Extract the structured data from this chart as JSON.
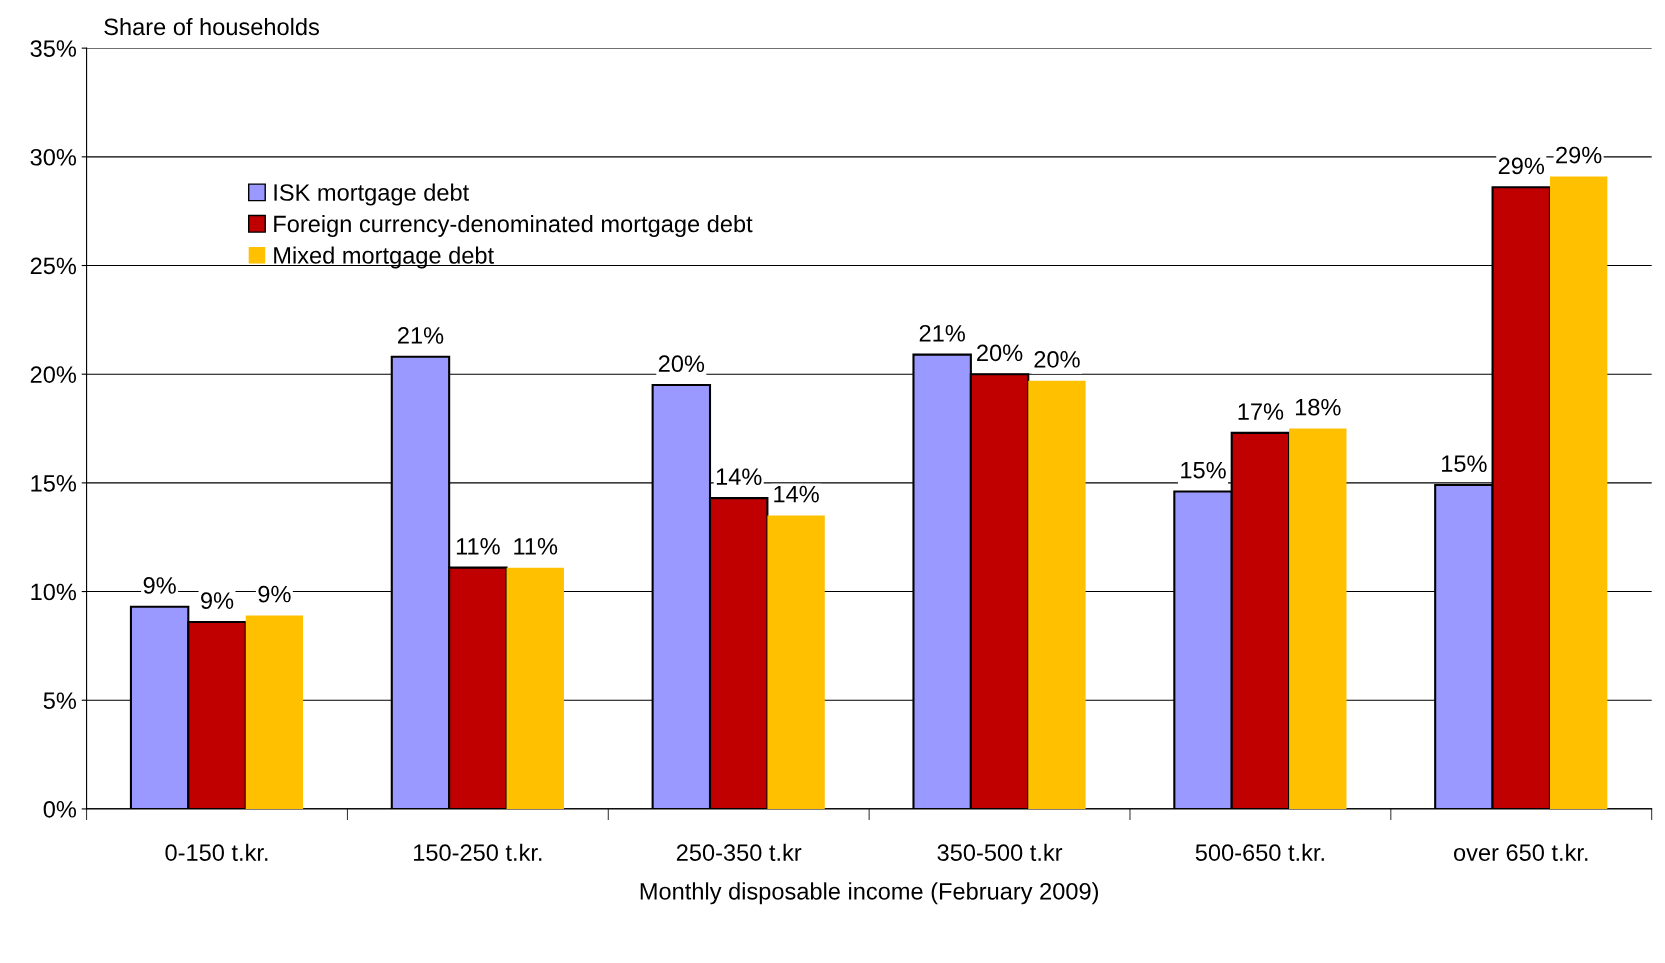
{
  "chart_data": {
    "type": "bar",
    "ylabel": "Share of households",
    "xlabel": "Monthly disposable income (February 2009)",
    "categories": [
      "0-150 t.kr.",
      "150-250 t.kr.",
      "250-350 t.kr",
      "350-500 t.kr",
      "500-650 t.kr.",
      "over 650 t.kr."
    ],
    "series": [
      {
        "name": "ISK mortgage debt",
        "color": "#9999ff",
        "values": [
          9.3,
          20.8,
          19.5,
          20.9,
          14.6,
          14.9
        ],
        "value_labels": [
          "9%",
          "21%",
          "20%",
          "21%",
          "15%",
          "15%"
        ]
      },
      {
        "name": "Foreign currency-denominated mortgage debt",
        "color": "#c00000",
        "values": [
          8.6,
          11.1,
          14.3,
          20.0,
          17.3,
          28.6
        ],
        "value_labels": [
          "9%",
          "11%",
          "14%",
          "20%",
          "17%",
          "29%"
        ]
      },
      {
        "name": "Mixed mortgage debt",
        "color": "#ffc000",
        "values": [
          8.9,
          11.1,
          13.5,
          19.7,
          17.5,
          29.1
        ],
        "value_labels": [
          "9%",
          "11%",
          "14%",
          "20%",
          "18%",
          "29%"
        ]
      }
    ],
    "ylim": [
      0,
      35
    ],
    "yticks": [
      {
        "value": 0,
        "label": "0%"
      },
      {
        "value": 5,
        "label": "5%"
      },
      {
        "value": 10,
        "label": "10%"
      },
      {
        "value": 15,
        "label": "15%"
      },
      {
        "value": 20,
        "label": "20%"
      },
      {
        "value": 25,
        "label": "25%"
      },
      {
        "value": 30,
        "label": "30%"
      },
      {
        "value": 35,
        "label": "35%"
      }
    ],
    "grid": "y",
    "legend": "top left"
  }
}
